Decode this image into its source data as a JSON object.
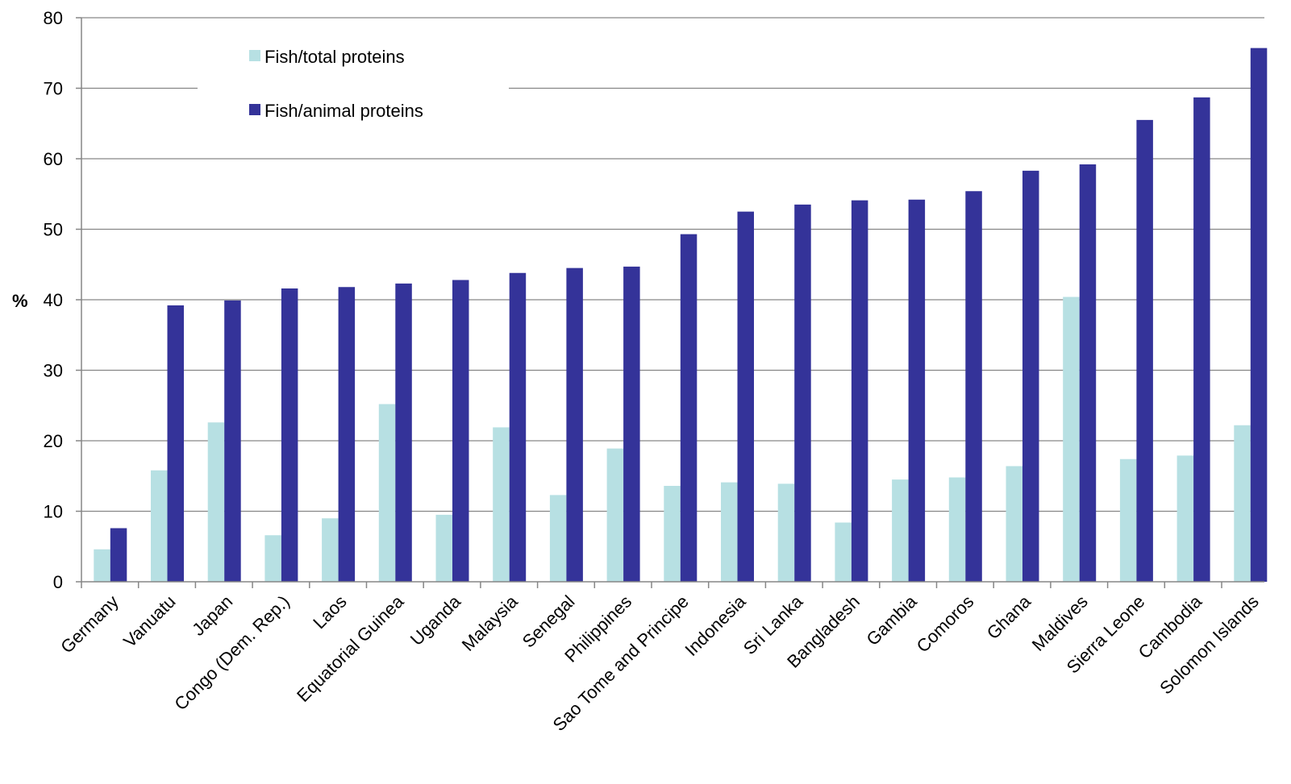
{
  "chart_data": {
    "type": "bar",
    "title": "",
    "xlabel": "",
    "ylabel": "%",
    "ylim": [
      0,
      80
    ],
    "yticks": [
      0,
      10,
      20,
      30,
      40,
      50,
      60,
      70,
      80
    ],
    "grid": true,
    "legend_position": "top-left",
    "categories": [
      "Germany",
      "Vanuatu",
      "Japan",
      "Congo (Dem. Rep.)",
      "Laos",
      "Equatorial Guinea",
      "Uganda",
      "Malaysia",
      "Senegal",
      "Philippines",
      "Sao Tome and Principe",
      "Indonesia",
      "Sri Lanka",
      "Bangladesh",
      "Gambia",
      "Comoros",
      "Ghana",
      "Maldives",
      "Sierra Leone",
      "Cambodia",
      "Solomon Islands"
    ],
    "series": [
      {
        "name": "Fish/total proteins",
        "color": "#b7e0e3",
        "values": [
          4.6,
          15.8,
          22.6,
          6.6,
          9.0,
          25.2,
          9.5,
          21.9,
          12.3,
          18.9,
          13.6,
          14.1,
          13.9,
          8.4,
          14.5,
          14.8,
          16.4,
          40.4,
          17.4,
          17.9,
          22.2
        ]
      },
      {
        "name": "Fish/animal proteins",
        "color": "#343399",
        "values": [
          7.6,
          39.2,
          39.9,
          41.6,
          41.8,
          42.3,
          42.8,
          43.8,
          44.5,
          44.7,
          49.3,
          52.5,
          53.5,
          54.1,
          54.2,
          55.4,
          58.3,
          59.2,
          65.5,
          68.7,
          75.7
        ]
      }
    ]
  }
}
